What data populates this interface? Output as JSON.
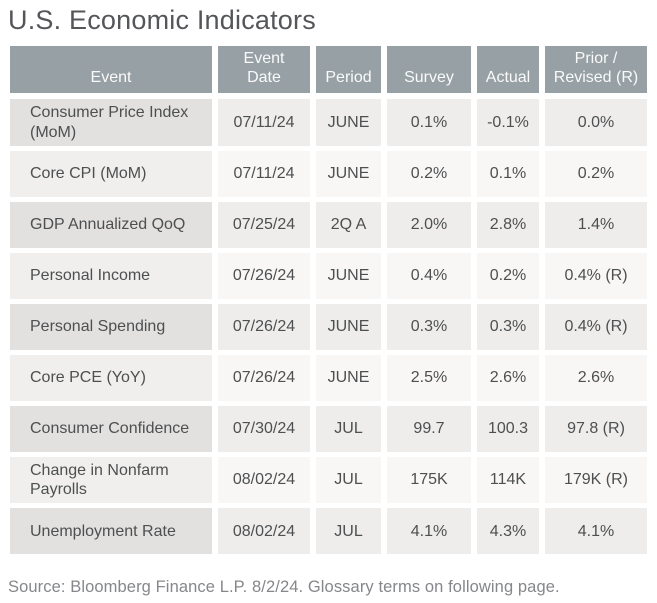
{
  "title": "U.S. Economic Indicators",
  "source_note": "Source: Bloomberg Finance L.P. 8/2/24. Glossary terms on following page.",
  "colors": {
    "header_bg": "#96a0a5",
    "header_text": "#fafafa",
    "title_text": "#54565a",
    "cell_text": "#4d4f51",
    "row_odd_event": "#e2e1df",
    "row_odd_cell": "#eeedeb",
    "row_even_event": "#f0efed",
    "row_even_cell": "#f8f7f5",
    "source_text": "#85878a",
    "page_bg": "#ffffff"
  },
  "table": {
    "columns": [
      {
        "key": "event",
        "label": "Event"
      },
      {
        "key": "date",
        "label": "Event Date"
      },
      {
        "key": "period",
        "label": "Period"
      },
      {
        "key": "survey",
        "label": "Survey"
      },
      {
        "key": "actual",
        "label": "Actual"
      },
      {
        "key": "prior",
        "label": "Prior / Revised (R)"
      }
    ],
    "rows": [
      {
        "event": "Consumer Price Index (MoM)",
        "date": "07/11/24",
        "period": "JUNE",
        "survey": "0.1%",
        "actual": "-0.1%",
        "prior": "0.0%"
      },
      {
        "event": "Core CPI (MoM)",
        "date": "07/11/24",
        "period": "JUNE",
        "survey": "0.2%",
        "actual": "0.1%",
        "prior": "0.2%"
      },
      {
        "event": "GDP Annualized QoQ",
        "date": "07/25/24",
        "period": "2Q A",
        "survey": "2.0%",
        "actual": "2.8%",
        "prior": "1.4%"
      },
      {
        "event": "Personal Income",
        "date": "07/26/24",
        "period": "JUNE",
        "survey": "0.4%",
        "actual": "0.2%",
        "prior": "0.4% (R)"
      },
      {
        "event": "Personal Spending",
        "date": "07/26/24",
        "period": "JUNE",
        "survey": "0.3%",
        "actual": "0.3%",
        "prior": "0.4% (R)"
      },
      {
        "event": "Core PCE (YoY)",
        "date": "07/26/24",
        "period": "JUNE",
        "survey": "2.5%",
        "actual": "2.6%",
        "prior": "2.6%"
      },
      {
        "event": "Consumer Confidence",
        "date": "07/30/24",
        "period": "JUL",
        "survey": "99.7",
        "actual": "100.3",
        "prior": "97.8 (R)"
      },
      {
        "event": "Change in Nonfarm Payrolls",
        "date": "08/02/24",
        "period": "JUL",
        "survey": "175K",
        "actual": "114K",
        "prior": "179K (R)"
      },
      {
        "event": "Unemployment Rate",
        "date": "08/02/24",
        "period": "JUL",
        "survey": "4.1%",
        "actual": "4.3%",
        "prior": "4.1%"
      }
    ]
  }
}
